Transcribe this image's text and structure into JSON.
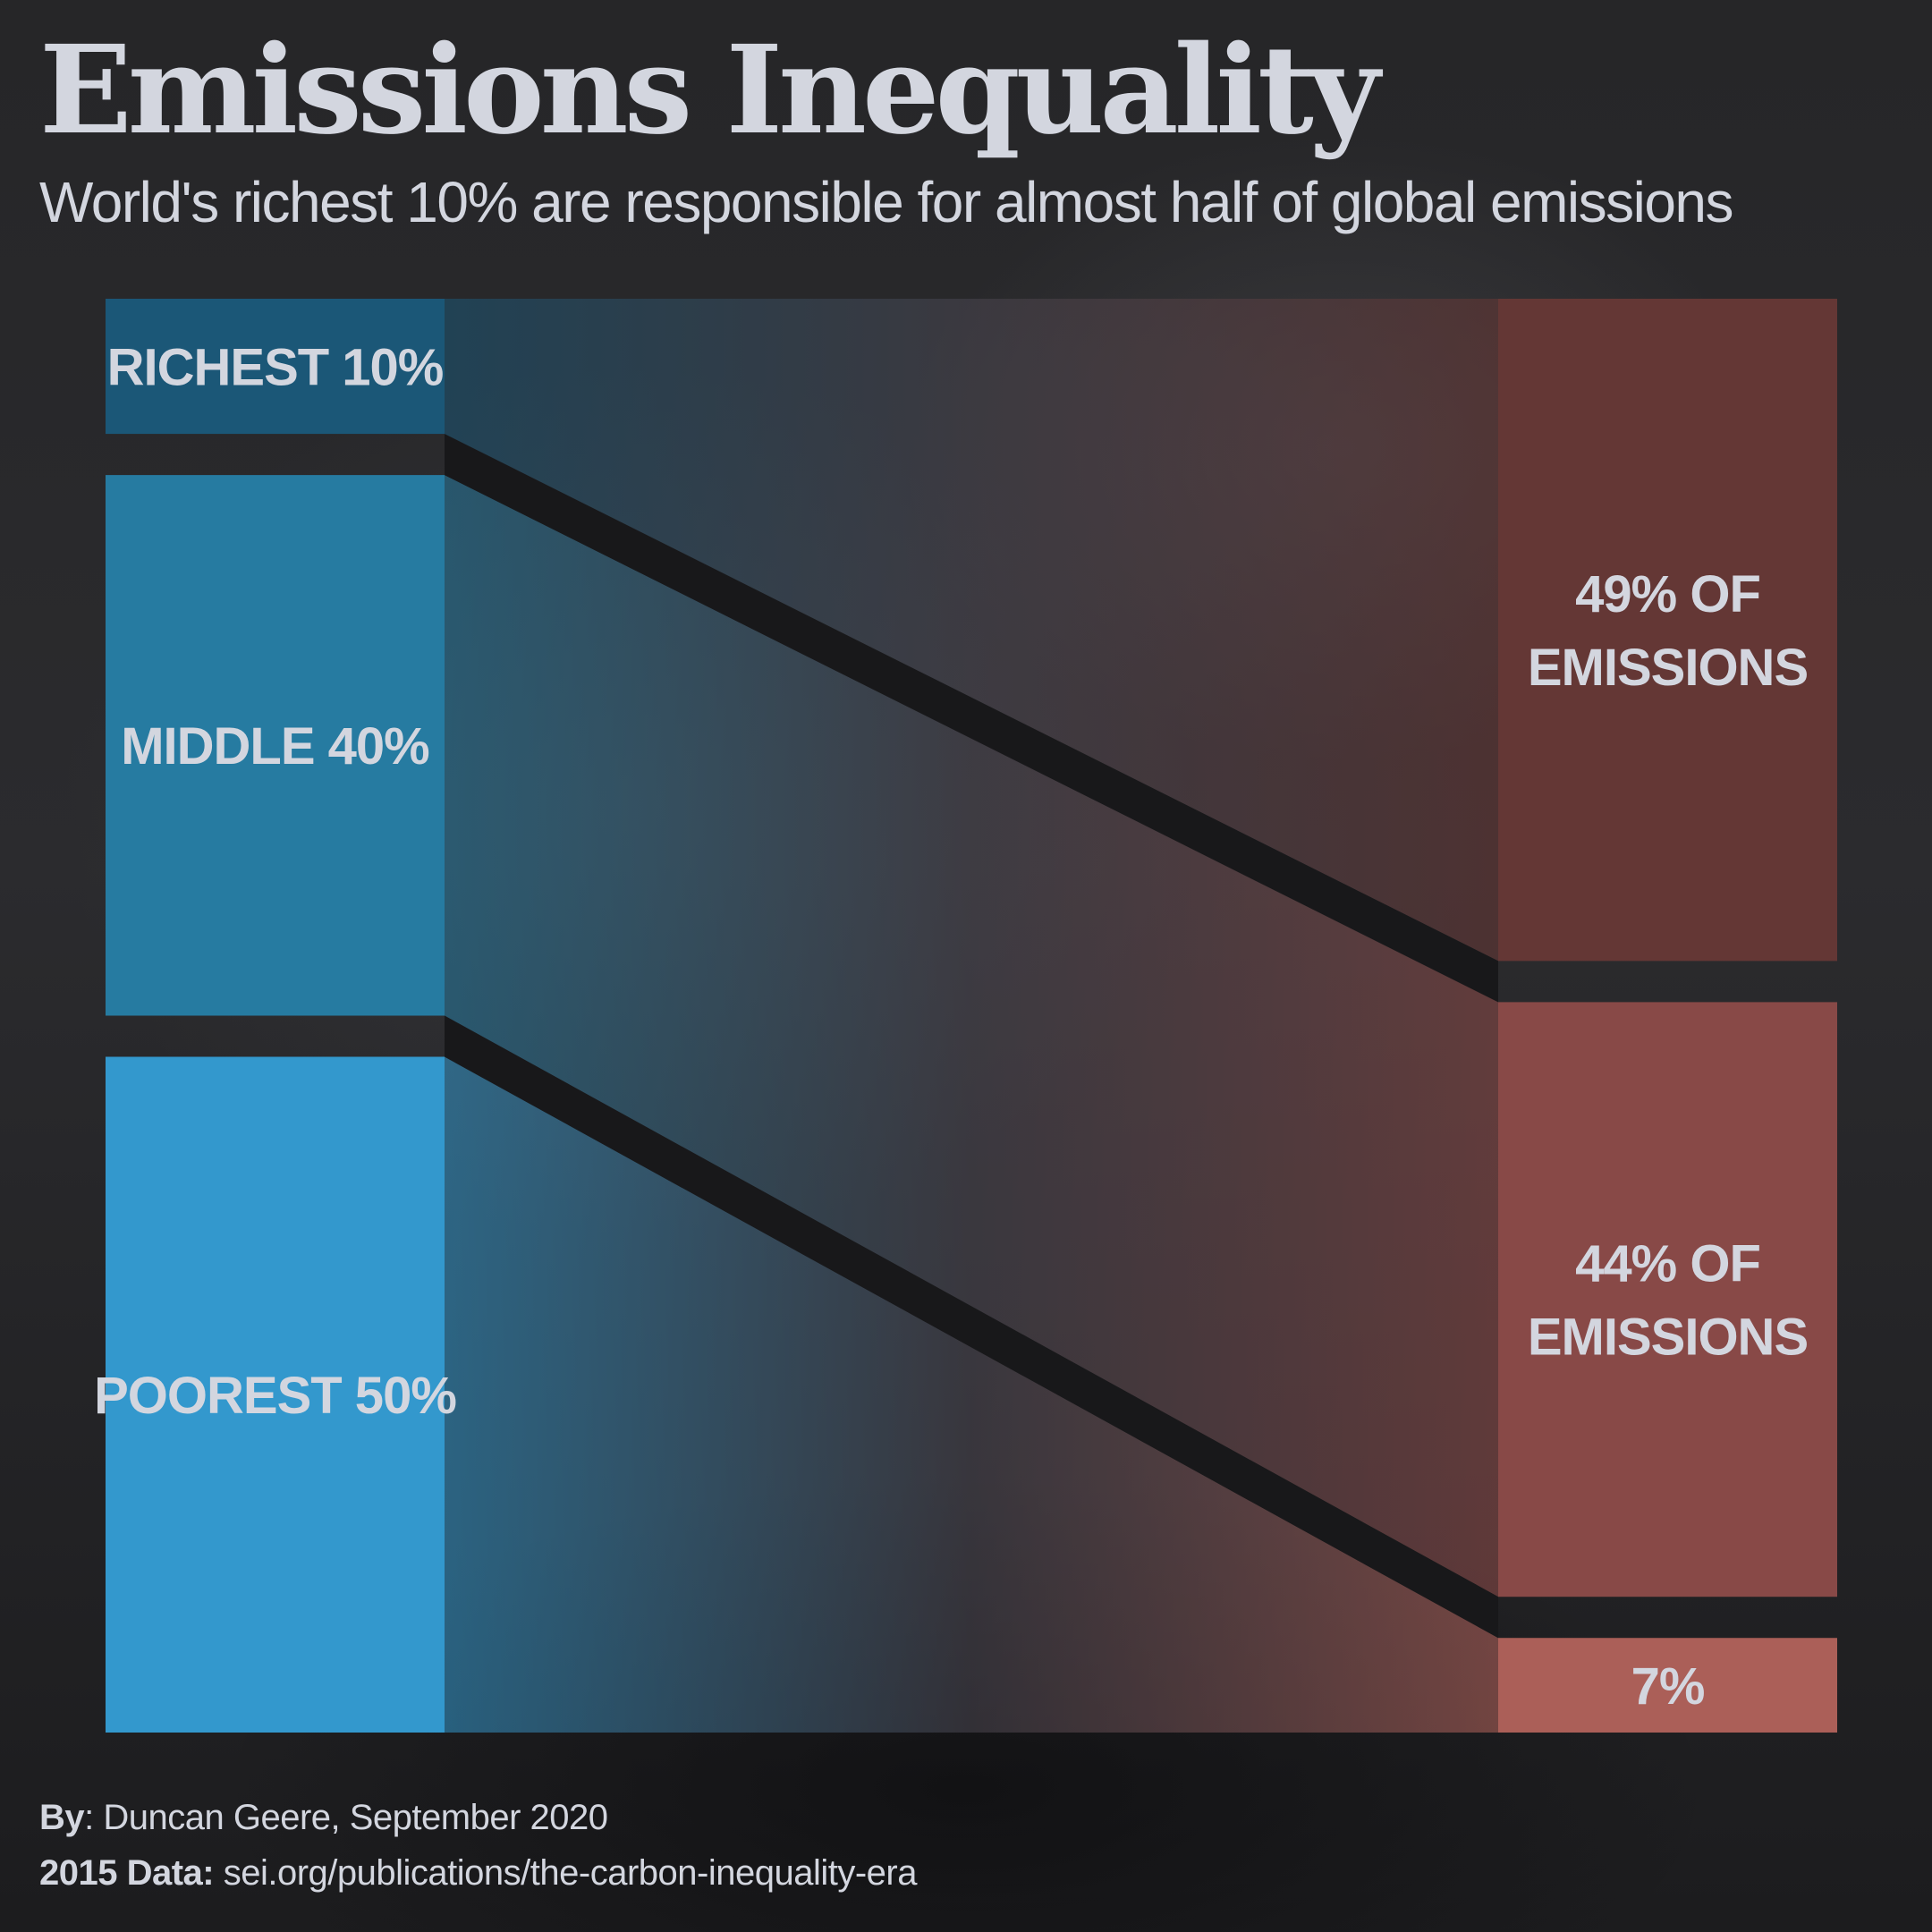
{
  "title": "Emissions Inequality",
  "subtitle": "World's richest 10% are responsible for almost half of global emissions",
  "chart_data": {
    "type": "sankey",
    "title": "Emissions Inequality",
    "subtitle": "World's richest 10% are responsible for almost half of global emissions",
    "sources": [
      {
        "label": "RICHEST 10%",
        "value": 10,
        "color": "#1b5777"
      },
      {
        "label": "MIDDLE 40%",
        "value": 40,
        "color": "#267ba1"
      },
      {
        "label": "POOREST 50%",
        "value": 50,
        "color": "#3398cd"
      }
    ],
    "targets": [
      {
        "label": [
          "49% OF",
          "EMISSIONS"
        ],
        "value": 49,
        "color": "#643735"
      },
      {
        "label": [
          "44% OF",
          "EMISSIONS"
        ],
        "value": 44,
        "color": "#884947"
      },
      {
        "label": [
          "7%"
        ],
        "value": 7,
        "color": "#ab5f58"
      }
    ],
    "flows": [
      {
        "from": 0,
        "to": 0,
        "value": 49
      },
      {
        "from": 1,
        "to": 1,
        "value": 44
      },
      {
        "from": 2,
        "to": 2,
        "value": 7
      }
    ]
  },
  "footer": {
    "by_label": "By",
    "by_text": ": Duncan Geere, September 2020",
    "data_label": "2015 Data:",
    "data_text": " sei.org/publications/the-carbon-inequality-era"
  }
}
